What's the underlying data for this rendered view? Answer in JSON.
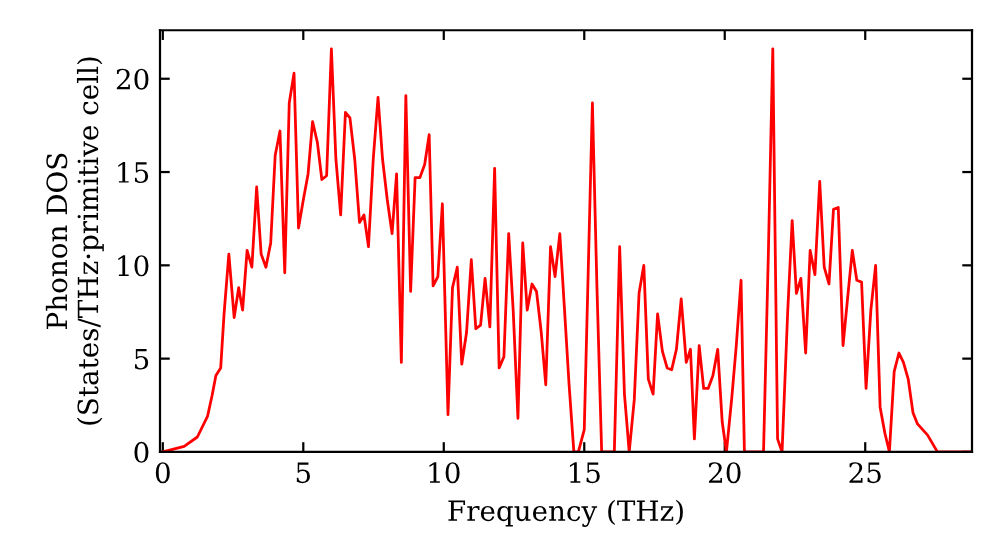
{
  "chart_data": {
    "type": "line",
    "xlabel": "Frequency (THz)",
    "ylabel": "Phonon DOS\n(States/THz·primitive cell)",
    "xlim": [
      -0.1,
      28.8
    ],
    "ylim": [
      0,
      22.6
    ],
    "xticks": [
      0,
      5,
      10,
      15,
      20,
      25
    ],
    "yticks": [
      0,
      5,
      10,
      15,
      20
    ],
    "grid": false,
    "marker": "none",
    "line_style": "solid",
    "series": [
      {
        "color": "#ff0000",
        "x": [
          0,
          0.76,
          1.23,
          1.59,
          1.75,
          1.89,
          2.06,
          2.18,
          2.35,
          2.54,
          2.7,
          2.84,
          3.0,
          3.17,
          3.34,
          3.5,
          3.67,
          3.84,
          4.0,
          4.17,
          4.34,
          4.5,
          4.67,
          4.83,
          5.0,
          5.17,
          5.33,
          5.5,
          5.66,
          5.83,
          6.0,
          6.16,
          6.33,
          6.5,
          6.66,
          6.83,
          7.0,
          7.16,
          7.32,
          7.49,
          7.66,
          7.82,
          7.99,
          8.16,
          8.32,
          8.49,
          8.65,
          8.82,
          8.98,
          9.15,
          9.32,
          9.48,
          9.62,
          9.79,
          9.95,
          10.15,
          10.31,
          10.48,
          10.64,
          10.81,
          10.98,
          11.14,
          11.31,
          11.47,
          11.64,
          11.81,
          11.97,
          12.14,
          12.31,
          12.47,
          12.64,
          12.81,
          12.97,
          13.14,
          13.3,
          13.47,
          13.63,
          13.8,
          13.96,
          14.13,
          14.29,
          14.46,
          14.63,
          14.79,
          15.0,
          15.29,
          15.45,
          15.62,
          16.07,
          16.26,
          16.43,
          16.6,
          16.78,
          16.95,
          17.12,
          17.28,
          17.45,
          17.61,
          17.78,
          17.95,
          18.11,
          18.28,
          18.45,
          18.63,
          18.78,
          18.92,
          19.09,
          19.25,
          19.41,
          19.58,
          19.75,
          19.91,
          20.06,
          20.25,
          20.41,
          20.58,
          20.7,
          21.38,
          21.55,
          21.71,
          21.88,
          22.04,
          22.24,
          22.4,
          22.55,
          22.71,
          22.88,
          23.04,
          23.21,
          23.38,
          23.54,
          23.71,
          23.87,
          24.04,
          24.21,
          24.37,
          24.54,
          24.7,
          24.87,
          25.03,
          25.2,
          25.37,
          25.53,
          25.7,
          25.86,
          26.03,
          26.2,
          26.36,
          26.53,
          26.7,
          26.86,
          27.22,
          27.57,
          28.8
        ],
        "values": [
          0,
          0.3,
          0.8,
          1.9,
          3.0,
          4.1,
          4.5,
          7.4,
          10.6,
          7.2,
          8.8,
          7.6,
          10.8,
          9.9,
          14.2,
          10.6,
          9.9,
          11.2,
          15.9,
          17.2,
          9.6,
          18.7,
          20.3,
          12.0,
          13.5,
          14.9,
          17.7,
          16.6,
          14.6,
          14.8,
          21.6,
          15.7,
          12.7,
          18.2,
          17.9,
          15.7,
          12.3,
          12.7,
          11.0,
          15.7,
          19.0,
          15.7,
          13.5,
          11.7,
          14.9,
          4.8,
          19.1,
          8.6,
          14.7,
          14.7,
          15.4,
          17.0,
          8.9,
          9.4,
          13.3,
          2.0,
          8.8,
          9.9,
          4.7,
          6.4,
          10.3,
          6.6,
          6.8,
          9.3,
          6.7,
          15.2,
          4.5,
          5.1,
          11.7,
          7.6,
          1.8,
          11.2,
          7.6,
          9.0,
          8.6,
          6.4,
          3.6,
          11.0,
          9.4,
          11.7,
          7.8,
          3.6,
          0,
          0,
          1.2,
          18.7,
          8.9,
          0,
          0,
          11.0,
          3.1,
          0,
          2.8,
          8.5,
          10.0,
          3.9,
          3.1,
          7.4,
          5.4,
          4.5,
          4.4,
          5.5,
          8.2,
          4.8,
          5.5,
          0.7,
          5.7,
          3.4,
          3.4,
          4.1,
          5.5,
          1.6,
          0,
          2.9,
          5.7,
          9.2,
          0,
          0,
          10.5,
          21.6,
          0.7,
          0,
          7.5,
          12.4,
          8.5,
          9.3,
          5.3,
          10.8,
          9.5,
          14.5,
          9.9,
          9.0,
          13.0,
          13.1,
          5.7,
          8.2,
          10.8,
          9.2,
          9.1,
          3.4,
          7.6,
          10.0,
          2.4,
          1.0,
          0,
          4.3,
          5.3,
          4.8,
          3.9,
          2.1,
          1.5,
          0.9,
          0,
          0
        ]
      }
    ]
  }
}
